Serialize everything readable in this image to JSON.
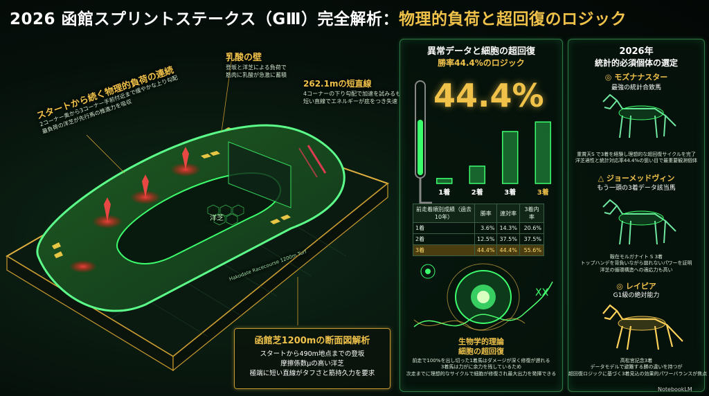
{
  "title": {
    "white": "2026 函館スプリントステークス（GⅢ）完全解析：",
    "gold": "物理的負荷と超回復のロジック"
  },
  "left": {
    "continuous_load": {
      "heading": "スタートから続く物理的負荷の連続",
      "line1": "2コーナー奥から3コーナー手前付近まで緩やかな上り勾配",
      "line2": "最負荷の洋芝が先行馬の推進力を吸収"
    },
    "lactic": {
      "heading": "乳酸の壁",
      "line1": "登坂と洋芝による負荷で",
      "line2": "筋肉に乳酸が急激に蓄積"
    },
    "straight": {
      "heading": "262.1mの短直線",
      "line1": "4コーナーの下り勾配で加速を試みるも",
      "line2": "短い直線でエネルギーが底をつき失速"
    },
    "grass_label": "洋芝",
    "track_text": "Hakodate Racecourse 1200m Turf",
    "analysis": {
      "heading": "函館芝1200mの断面図解析",
      "line1": "スタートから490m地点までの登坂",
      "line2": "摩擦係数μの高い洋芝",
      "line3": "極端に短い直線がタフさと筋持久力を要求"
    }
  },
  "middle": {
    "heading1": "異常データと細胞の超回復",
    "heading2": "勝率44.4%のロジック",
    "big_number": "44.4%",
    "chart_data": {
      "type": "bar",
      "categories": [
        "1着",
        "2着",
        "3着",
        "3着"
      ],
      "values": [
        3.6,
        12.5,
        37.5,
        44.4
      ],
      "ylim": [
        0,
        50
      ]
    },
    "table": {
      "headers": [
        "前走着順別成績（過去10年）",
        "勝率",
        "連対率",
        "3着内率"
      ],
      "rows": [
        [
          "1着",
          "3.6%",
          "14.3%",
          "20.6%"
        ],
        [
          "2着",
          "12.5%",
          "37.5%",
          "37.5%"
        ],
        [
          "3着",
          "44.4%",
          "44.4%",
          "55.6%"
        ]
      ]
    },
    "bio": {
      "heading1": "生物学的理論",
      "heading2": "細胞の超回復",
      "line1": "前走で100%を出し切った1着馬はダメージが深く修復が遅れる",
      "line2": "3着馬は力がに余力を残しているため",
      "line3": "次走までに理想的なサイクルで細胞が修復され最大出力を発揮できる"
    }
  },
  "right": {
    "heading1": "2026年",
    "heading2": "統計的必須個体の選定",
    "horse1": {
      "name": "◎ モズナナスター",
      "sub": "最強の統計合致馬",
      "line1": "重賞天S で3着を経験し理想的な超回復サイクルを完了",
      "line2": "洋芝適性と統計対応率44.4%の狙い目で最重要観測個体"
    },
    "horse2": {
      "name": "△ ジョーメッドヴィン",
      "sub": "もう一頭の3着データ該当馬",
      "line1": "鞍在モルガナイト S 3着",
      "line2": "トップハンデを背負いながら崩れないパワーを証明",
      "line3": "洋芝の循環構造への適応力も高い"
    },
    "horse3": {
      "name": "◎ レイピア",
      "sub": "G1級の絶対能力",
      "line1": "高松宮記念3着",
      "line2": "データモデルで避難する勝の違いを持つが",
      "line3": "超回復ロジックに基づく3着見込の効果的パワーバランスが焦点"
    }
  },
  "footer": {
    "brand": "NotebookLM"
  },
  "colors": {
    "gold": "#f0c24a",
    "neon_green": "#3dff6e",
    "red": "#ff3a3a"
  }
}
